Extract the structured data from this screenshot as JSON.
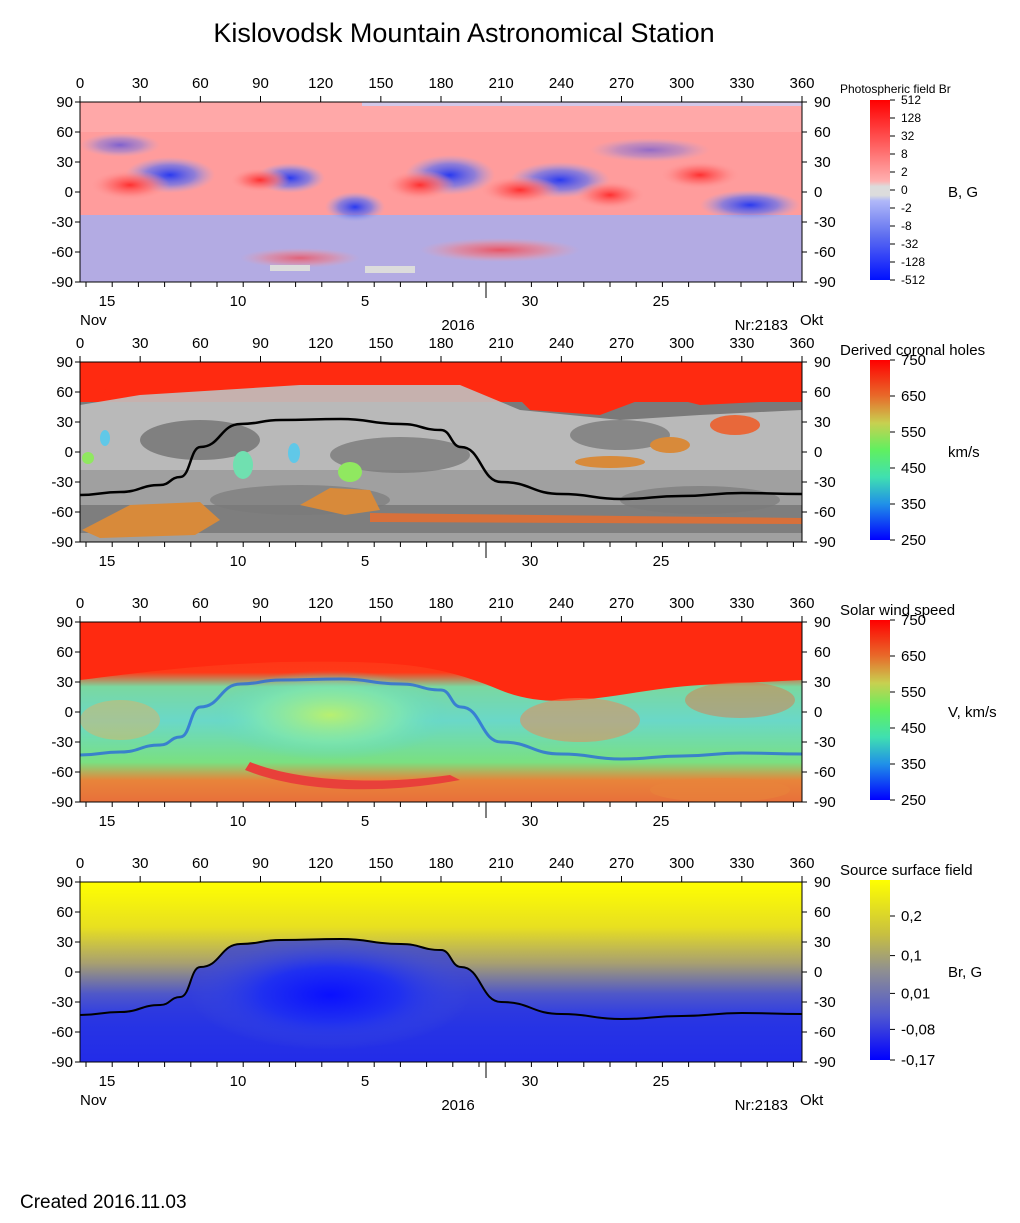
{
  "title": "Kislovodsk Mountain Astronomical Station",
  "created_label": "Created  2016.11.03",
  "chart_data": [
    {
      "type": "heatmap",
      "id": "photospheric",
      "title": "Photospheric field Br",
      "colorbar_label": "B, G",
      "colorbar_ticks": [
        "512",
        "128",
        "32",
        "8",
        "2",
        "0",
        "-2",
        "-8",
        "-32",
        "-128",
        "-512"
      ],
      "colors": {
        "positive": "#ff9a9a",
        "strong_positive": "#ff1010",
        "negative": "#9aa6f0",
        "strong_negative": "#1020ff",
        "zero": "#dcdcdc"
      },
      "top_axis_ticks": [
        "0",
        "30",
        "60",
        "90",
        "120",
        "150",
        "180",
        "210",
        "240",
        "270",
        "300",
        "330",
        "360"
      ],
      "lat_ticks": [
        "90",
        "60",
        "30",
        "0",
        "-30",
        "-60",
        "-90"
      ],
      "date_ticks": [
        "15",
        "10",
        "5",
        "30",
        "25"
      ],
      "month_left": "Nov",
      "year": "2016",
      "rotation": "Nr:2183",
      "month_right": "Okt",
      "xlim": [
        0,
        360
      ],
      "ylim": [
        -90,
        90
      ]
    },
    {
      "type": "heatmap",
      "id": "coronal-holes",
      "title": "Derived coronal holes",
      "colorbar_label": "km/s",
      "colorbar_ticks": [
        "750",
        "650",
        "550",
        "450",
        "350",
        "250"
      ],
      "colors": {
        "hole_fast": "#ff2a10",
        "closed_light": "#c0c0c0",
        "closed_dark": "#7a7a7a",
        "neutral_line": "#000000"
      },
      "top_axis_ticks": [
        "0",
        "30",
        "60",
        "90",
        "120",
        "150",
        "180",
        "210",
        "240",
        "270",
        "300",
        "330",
        "360"
      ],
      "lat_ticks": [
        "90",
        "60",
        "30",
        "0",
        "-30",
        "-60",
        "-90"
      ],
      "date_ticks": [
        "15",
        "10",
        "5",
        "30",
        "25"
      ],
      "xlim": [
        0,
        360
      ],
      "ylim": [
        -90,
        90
      ]
    },
    {
      "type": "heatmap",
      "id": "solar-wind",
      "title": "Solar wind speed",
      "colorbar_label": "V, km/s",
      "colorbar_ticks": [
        "750",
        "650",
        "550",
        "450",
        "350",
        "250"
      ],
      "colors": {
        "fast": "#ff2a10",
        "slow": "#5ad8c8",
        "lane": "#2a6ad8"
      },
      "top_axis_ticks": [
        "0",
        "30",
        "60",
        "90",
        "120",
        "150",
        "180",
        "210",
        "240",
        "270",
        "300",
        "330",
        "360"
      ],
      "lat_ticks": [
        "90",
        "60",
        "30",
        "0",
        "-30",
        "-60",
        "-90"
      ],
      "date_ticks": [
        "15",
        "10",
        "5",
        "30",
        "25"
      ],
      "xlim": [
        0,
        360
      ],
      "ylim": [
        -90,
        90
      ]
    },
    {
      "type": "heatmap",
      "id": "source-surface",
      "title": "Source surface field",
      "colorbar_label": "Br, G",
      "colorbar_ticks": [
        "0,2",
        "0,1",
        "0,01",
        "-0,08",
        "-0,17"
      ],
      "colors": {
        "positive": "#ffff00",
        "negative": "#1010ff",
        "neutral": "#909090"
      },
      "top_axis_ticks": [
        "0",
        "30",
        "60",
        "90",
        "120",
        "150",
        "180",
        "210",
        "240",
        "270",
        "300",
        "330",
        "360"
      ],
      "lat_ticks": [
        "90",
        "60",
        "30",
        "0",
        "-30",
        "-60",
        "-90"
      ],
      "date_ticks": [
        "15",
        "10",
        "5",
        "30",
        "25"
      ],
      "month_left": "Nov",
      "year": "2016",
      "rotation": "Nr:2183",
      "month_right": "Okt",
      "neutral_line": {
        "lon": [
          0,
          20,
          40,
          50,
          60,
          80,
          100,
          130,
          160,
          180,
          190,
          210,
          240,
          270,
          300,
          330,
          360
        ],
        "lat": [
          -43,
          -40,
          -33,
          -25,
          5,
          28,
          32,
          33,
          28,
          22,
          5,
          -30,
          -42,
          -47,
          -44,
          -41,
          -42
        ]
      },
      "xlim": [
        0,
        360
      ],
      "ylim": [
        -90,
        90
      ]
    }
  ]
}
